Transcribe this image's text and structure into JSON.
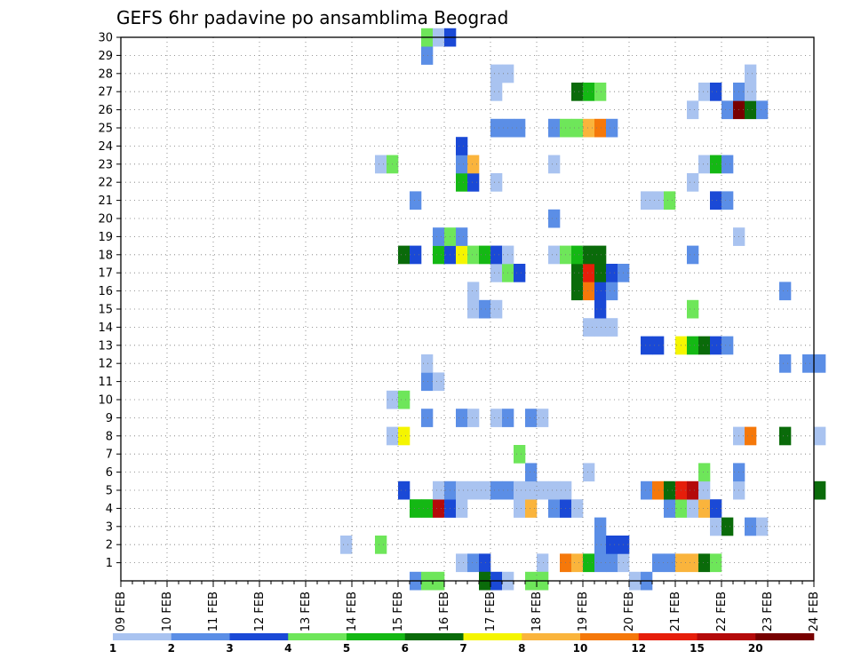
{
  "chart_data": {
    "type": "heatmap",
    "title": "GEFS 6hr padavine po ansamblima Beograd",
    "x_ticks": [
      "09 FEB",
      "10 FEB",
      "11 FEB",
      "12 FEB",
      "13 FEB",
      "14 FEB",
      "15 FEB",
      "16 FEB",
      "17 FEB",
      "18 FEB",
      "19 FEB",
      "20 FEB",
      "21 FEB",
      "22 FEB",
      "23 FEB",
      "24 FEB"
    ],
    "x_step": "6hr",
    "y_ticks": [
      1,
      2,
      3,
      4,
      5,
      6,
      7,
      8,
      9,
      10,
      11,
      12,
      13,
      14,
      15,
      16,
      17,
      18,
      19,
      20,
      21,
      22,
      23,
      24,
      25,
      26,
      27,
      28,
      29,
      30
    ],
    "ylim": [
      0,
      30
    ],
    "grid": true,
    "colorbar": {
      "levels": [
        "1",
        "2",
        "3",
        "4",
        "5",
        "6",
        "7",
        "8",
        "10",
        "12",
        "15",
        "20"
      ],
      "colors": [
        "#a9c3f0",
        "#5b8ee6",
        "#1a49d6",
        "#6ee65a",
        "#14b814",
        "#0a6b0a",
        "#f5f500",
        "#fab43c",
        "#f5780a",
        "#e61e0a",
        "#b40a0a",
        "#780000"
      ]
    },
    "cells": [
      [
        29,
        1,
        0
      ],
      [
        30,
        1,
        1
      ],
      [
        31,
        1,
        2
      ],
      [
        36,
        1,
        0
      ],
      [
        38,
        1,
        8
      ],
      [
        39,
        1,
        7
      ],
      [
        40,
        1,
        4
      ],
      [
        41,
        1,
        1
      ],
      [
        42,
        1,
        1
      ],
      [
        43,
        1,
        0
      ],
      [
        46,
        1,
        1
      ],
      [
        47,
        1,
        1
      ],
      [
        48,
        1,
        7
      ],
      [
        49,
        1,
        7
      ],
      [
        50,
        1,
        5
      ],
      [
        51,
        1,
        3
      ],
      [
        41,
        2,
        1
      ],
      [
        42,
        2,
        2
      ],
      [
        43,
        2,
        2
      ],
      [
        19,
        2,
        0
      ],
      [
        22,
        2,
        3
      ],
      [
        41,
        3,
        1
      ],
      [
        51,
        3,
        0
      ],
      [
        52,
        3,
        5
      ],
      [
        54,
        3,
        1
      ],
      [
        55,
        3,
        0
      ],
      [
        25,
        4,
        4
      ],
      [
        26,
        4,
        4
      ],
      [
        27,
        4,
        10
      ],
      [
        28,
        4,
        2
      ],
      [
        29,
        4,
        0
      ],
      [
        34,
        4,
        0
      ],
      [
        35,
        4,
        7
      ],
      [
        37,
        4,
        1
      ],
      [
        38,
        4,
        2
      ],
      [
        39,
        4,
        0
      ],
      [
        47,
        4,
        1
      ],
      [
        48,
        4,
        3
      ],
      [
        49,
        4,
        0
      ],
      [
        50,
        4,
        7
      ],
      [
        51,
        4,
        2
      ],
      [
        24,
        5,
        2
      ],
      [
        27,
        5,
        0
      ],
      [
        28,
        5,
        1
      ],
      [
        29,
        5,
        0
      ],
      [
        30,
        5,
        0
      ],
      [
        31,
        5,
        0
      ],
      [
        32,
        5,
        1
      ],
      [
        33,
        5,
        1
      ],
      [
        34,
        5,
        0
      ],
      [
        35,
        5,
        0
      ],
      [
        36,
        5,
        0
      ],
      [
        37,
        5,
        0
      ],
      [
        38,
        5,
        0
      ],
      [
        45,
        5,
        1
      ],
      [
        46,
        5,
        8
      ],
      [
        47,
        5,
        5
      ],
      [
        48,
        5,
        9
      ],
      [
        49,
        5,
        10
      ],
      [
        50,
        5,
        0
      ],
      [
        53,
        5,
        0
      ],
      [
        60,
        5,
        5
      ],
      [
        35,
        6,
        1
      ],
      [
        40,
        6,
        0
      ],
      [
        53,
        6,
        1
      ],
      [
        50,
        6,
        3
      ],
      [
        34,
        7,
        3
      ],
      [
        23,
        8,
        0
      ],
      [
        24,
        8,
        6
      ],
      [
        53,
        8,
        0
      ],
      [
        54,
        8,
        8
      ],
      [
        57,
        8,
        5
      ],
      [
        60,
        8,
        0
      ],
      [
        26,
        9,
        1
      ],
      [
        29,
        9,
        1
      ],
      [
        30,
        9,
        0
      ],
      [
        32,
        9,
        0
      ],
      [
        33,
        9,
        1
      ],
      [
        35,
        9,
        1
      ],
      [
        36,
        9,
        0
      ],
      [
        23,
        10,
        0
      ],
      [
        24,
        10,
        3
      ],
      [
        26,
        11,
        1
      ],
      [
        27,
        11,
        0
      ],
      [
        26,
        12,
        0
      ],
      [
        57,
        12,
        1
      ],
      [
        59,
        12,
        1
      ],
      [
        60,
        12,
        1
      ],
      [
        45,
        13,
        2
      ],
      [
        46,
        13,
        2
      ],
      [
        48,
        13,
        6
      ],
      [
        49,
        13,
        4
      ],
      [
        50,
        13,
        5
      ],
      [
        51,
        13,
        2
      ],
      [
        52,
        13,
        1
      ],
      [
        40,
        14,
        0
      ],
      [
        41,
        14,
        0
      ],
      [
        42,
        14,
        0
      ],
      [
        30,
        15,
        0
      ],
      [
        31,
        15,
        1
      ],
      [
        32,
        15,
        0
      ],
      [
        41,
        15,
        2
      ],
      [
        49,
        15,
        3
      ],
      [
        30,
        16,
        0
      ],
      [
        39,
        16,
        5
      ],
      [
        40,
        16,
        8
      ],
      [
        41,
        16,
        2
      ],
      [
        42,
        16,
        1
      ],
      [
        57,
        16,
        1
      ],
      [
        32,
        17,
        0
      ],
      [
        33,
        17,
        3
      ],
      [
        34,
        17,
        2
      ],
      [
        39,
        17,
        5
      ],
      [
        40,
        17,
        9
      ],
      [
        41,
        17,
        5
      ],
      [
        42,
        17,
        2
      ],
      [
        43,
        17,
        1
      ],
      [
        24,
        18,
        5
      ],
      [
        25,
        18,
        2
      ],
      [
        27,
        18,
        4
      ],
      [
        28,
        18,
        2
      ],
      [
        29,
        18,
        6
      ],
      [
        30,
        18,
        3
      ],
      [
        31,
        18,
        4
      ],
      [
        32,
        18,
        2
      ],
      [
        33,
        18,
        0
      ],
      [
        37,
        18,
        0
      ],
      [
        38,
        18,
        3
      ],
      [
        39,
        18,
        4
      ],
      [
        40,
        18,
        5
      ],
      [
        41,
        18,
        5
      ],
      [
        49,
        18,
        1
      ],
      [
        27,
        19,
        1
      ],
      [
        28,
        19,
        3
      ],
      [
        29,
        19,
        1
      ],
      [
        53,
        19,
        0
      ],
      [
        37,
        20,
        1
      ],
      [
        25,
        21,
        1
      ],
      [
        45,
        21,
        0
      ],
      [
        46,
        21,
        0
      ],
      [
        47,
        21,
        3
      ],
      [
        51,
        21,
        2
      ],
      [
        52,
        21,
        1
      ],
      [
        29,
        22,
        4
      ],
      [
        30,
        22,
        2
      ],
      [
        32,
        22,
        0
      ],
      [
        49,
        22,
        0
      ],
      [
        22,
        23,
        0
      ],
      [
        23,
        23,
        3
      ],
      [
        29,
        23,
        1
      ],
      [
        30,
        23,
        7
      ],
      [
        37,
        23,
        0
      ],
      [
        50,
        23,
        0
      ],
      [
        51,
        23,
        4
      ],
      [
        52,
        23,
        1
      ],
      [
        29,
        24,
        2
      ],
      [
        32,
        25,
        1
      ],
      [
        33,
        25,
        1
      ],
      [
        34,
        25,
        1
      ],
      [
        37,
        25,
        1
      ],
      [
        38,
        25,
        3
      ],
      [
        39,
        25,
        3
      ],
      [
        40,
        25,
        7
      ],
      [
        41,
        25,
        8
      ],
      [
        42,
        25,
        1
      ],
      [
        49,
        26,
        0
      ],
      [
        52,
        26,
        1
      ],
      [
        53,
        26,
        11
      ],
      [
        54,
        26,
        5
      ],
      [
        55,
        26,
        1
      ],
      [
        32,
        27,
        0
      ],
      [
        39,
        27,
        5
      ],
      [
        40,
        27,
        4
      ],
      [
        41,
        27,
        3
      ],
      [
        50,
        27,
        0
      ],
      [
        51,
        27,
        2
      ],
      [
        53,
        27,
        1
      ],
      [
        54,
        27,
        0
      ],
      [
        32,
        28,
        0
      ],
      [
        33,
        28,
        0
      ],
      [
        54,
        28,
        0
      ],
      [
        26,
        29,
        1
      ],
      [
        26,
        30,
        3
      ],
      [
        27,
        30,
        0
      ],
      [
        28,
        30,
        2
      ],
      [
        25,
        0,
        1
      ],
      [
        26,
        0,
        3
      ],
      [
        27,
        0,
        3
      ],
      [
        31,
        0,
        5
      ],
      [
        32,
        0,
        2
      ],
      [
        33,
        0,
        0
      ],
      [
        35,
        0,
        3
      ],
      [
        36,
        0,
        3
      ],
      [
        44,
        0,
        0
      ],
      [
        45,
        0,
        1
      ]
    ]
  }
}
